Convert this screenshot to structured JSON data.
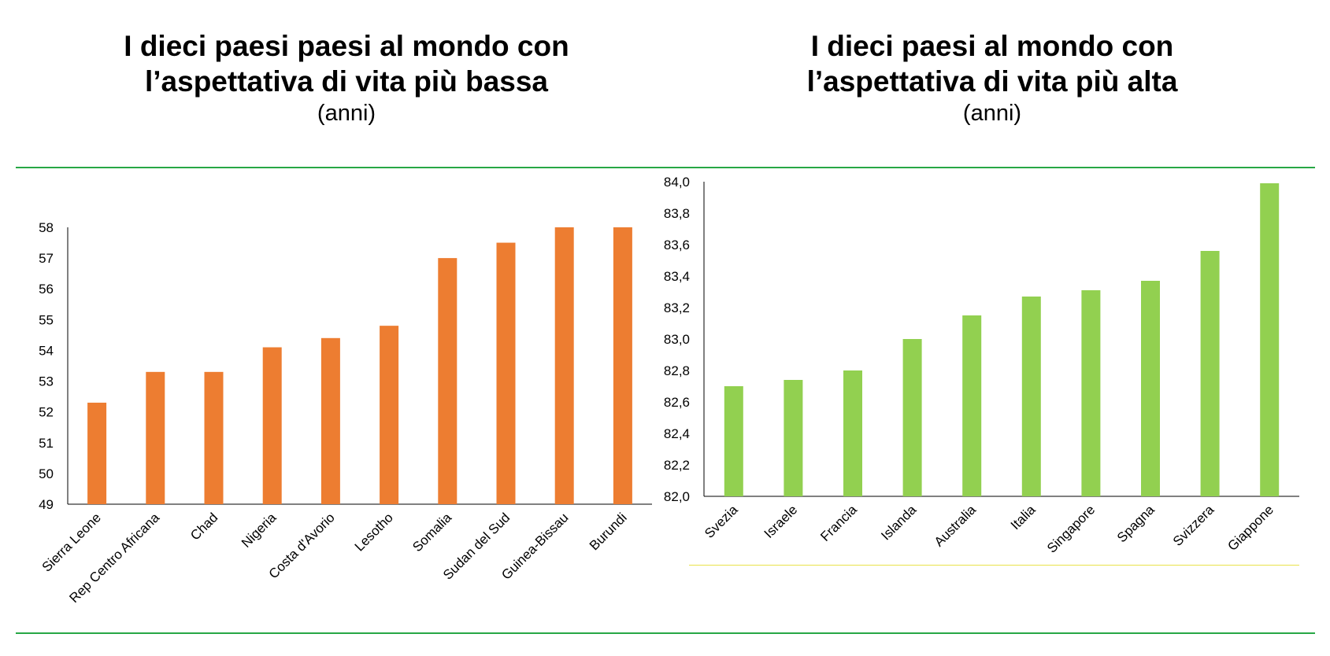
{
  "charts_title": {
    "left": {
      "lines": [
        "I dieci paesi paesi al mondo con",
        "l’aspettativa di vita più bassa"
      ],
      "subtitle": "(anni)"
    },
    "right": {
      "lines": [
        "I dieci paesi al mondo con",
        "l’aspettativa di vita più alta"
      ],
      "subtitle": "(anni)"
    }
  },
  "colors": {
    "left_bars": "#ed7d31",
    "right_bars": "#92d050",
    "divider": "#27a745",
    "yellow_line": "#e9e24a"
  },
  "chart_data": [
    {
      "type": "bar",
      "title": "I dieci paesi paesi al mondo con l’aspettativa di vita più bassa",
      "subtitle": "(anni)",
      "categories": [
        "Sierra Leone",
        "Rep Centro Africana",
        "Chad",
        "Nigeria",
        "Costa d'Avorio",
        "Lesotho",
        "Somalia",
        "Sudan del Sud",
        "Guinea-Bissau",
        "Burundi"
      ],
      "values": [
        52.3,
        53.3,
        53.3,
        54.1,
        54.4,
        54.8,
        57.0,
        57.5,
        58.0,
        58.0
      ],
      "ylim": [
        49,
        58
      ],
      "yticks": [
        49,
        50,
        51,
        52,
        53,
        54,
        55,
        56,
        57,
        58
      ],
      "ytick_labels": [
        "49",
        "50",
        "51",
        "52",
        "53",
        "54",
        "55",
        "56",
        "57",
        "58"
      ],
      "color": "#ed7d31",
      "grid": false,
      "legend": "none"
    },
    {
      "type": "bar",
      "title": "I dieci paesi al mondo con l’aspettativa di vita più alta",
      "subtitle": "(anni)",
      "categories": [
        "Svezia",
        "Israele",
        "Francia",
        "Islanda",
        "Australia",
        "Italia",
        "Singapore",
        "Spagna",
        "Svizzera",
        "Giappone"
      ],
      "values": [
        82.7,
        82.74,
        82.8,
        83.0,
        83.15,
        83.27,
        83.31,
        83.37,
        83.56,
        83.99
      ],
      "ylim": [
        82.0,
        84.0
      ],
      "yticks": [
        82.0,
        82.2,
        82.4,
        82.6,
        82.8,
        83.0,
        83.2,
        83.4,
        83.6,
        83.8,
        84.0
      ],
      "ytick_labels": [
        "82,0",
        "82,2",
        "82,4",
        "82,6",
        "82,8",
        "83,0",
        "83,2",
        "83,4",
        "83,6",
        "83,8",
        "84,0"
      ],
      "color": "#92d050",
      "grid": false,
      "legend": "none"
    }
  ]
}
